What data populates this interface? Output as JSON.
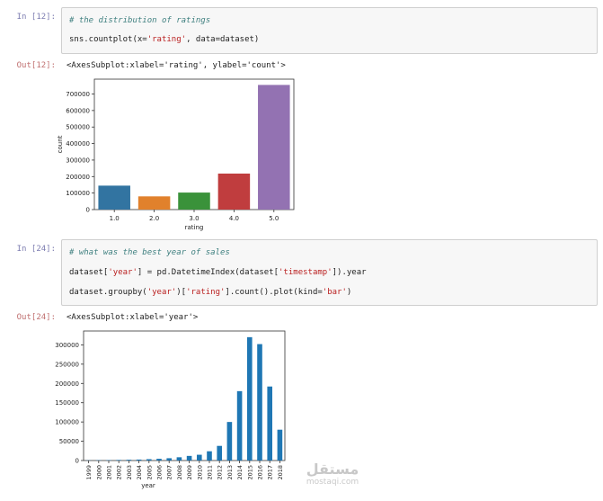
{
  "cells": [
    {
      "in_prompt": "In [12]:",
      "code": [
        "# the distribution of ratings",
        "sns.countplot(x='rating', data=dataset)"
      ],
      "out_prompt": "Out[12]:",
      "output_text": "<AxesSubplot:xlabel='rating', ylabel='count'>"
    },
    {
      "in_prompt": "In [24]:",
      "code": [
        "# what was the best year of sales",
        "dataset['year'] = pd.DatetimeIndex(dataset['timestamp']).year",
        "dataset.groupby('year')['rating'].count().plot(kind='bar')"
      ],
      "out_prompt": "Out[24]:",
      "output_text": "<AxesSubplot:xlabel='year'>"
    }
  ],
  "chart_data": [
    {
      "type": "bar",
      "categories": [
        "1.0",
        "2.0",
        "3.0",
        "4.0",
        "5.0"
      ],
      "values": [
        145000,
        80000,
        103000,
        218000,
        755000
      ],
      "colors": [
        "#3274a1",
        "#e1812c",
        "#3a923a",
        "#c03d3e",
        "#9372b2"
      ],
      "xlabel": "rating",
      "ylabel": "count",
      "ylim": [
        0,
        790000
      ],
      "yticks": [
        0,
        100000,
        200000,
        300000,
        400000,
        500000,
        600000,
        700000
      ],
      "ytick_labels": [
        "0",
        "100000",
        "200000",
        "300000",
        "400000",
        "500000",
        "600000",
        "700000"
      ],
      "grid": false
    },
    {
      "type": "bar",
      "categories": [
        "1999",
        "2000",
        "2001",
        "2002",
        "2003",
        "2004",
        "2005",
        "2006",
        "2007",
        "2008",
        "2009",
        "2010",
        "2011",
        "2012",
        "2013",
        "2014",
        "2015",
        "2016",
        "2017",
        "2018"
      ],
      "values": [
        500,
        800,
        1000,
        1500,
        2000,
        2500,
        3500,
        4500,
        6000,
        8500,
        12000,
        15000,
        24000,
        38000,
        100000,
        180000,
        320000,
        302000,
        192000,
        80000
      ],
      "color": "#1f77b4",
      "xlabel": "year",
      "ylabel": "",
      "ylim": [
        0,
        336000
      ],
      "yticks": [
        0,
        50000,
        100000,
        150000,
        200000,
        250000,
        300000
      ],
      "ytick_labels": [
        "0",
        "50000",
        "100000",
        "150000",
        "200000",
        "250000",
        "300000"
      ],
      "grid": false
    }
  ],
  "watermark": {
    "arabic": "مستقل",
    "latin": "mostaqi.com"
  }
}
